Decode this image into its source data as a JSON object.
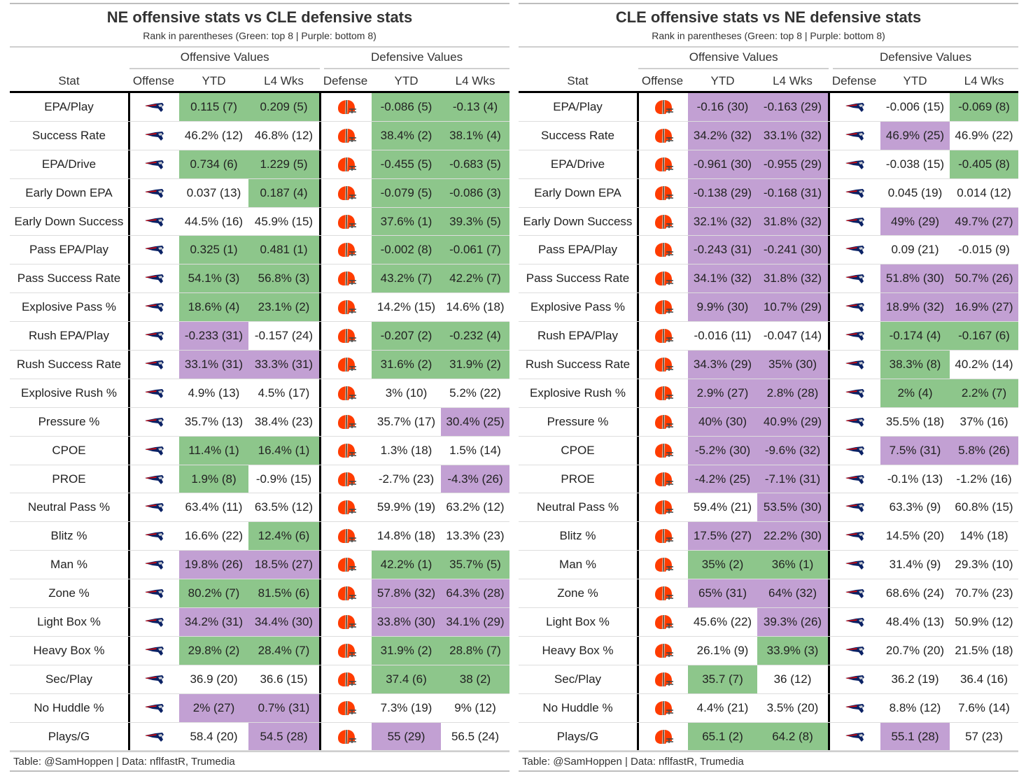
{
  "colors": {
    "green": "#8dc68b",
    "purple": "#c2a0d3"
  },
  "panels": [
    {
      "title": "NE offensive stats vs CLE defensive stats",
      "subtitle": "Rank in parentheses (Green: top 8 | Purple: bottom 8)",
      "spanners": [
        "Offensive Values",
        "Defensive Values"
      ],
      "columns": [
        "Stat",
        "Offense",
        "YTD",
        "L4 Wks",
        "Defense",
        "YTD",
        "L4 Wks"
      ],
      "offense_logo": "patriots-logo",
      "defense_logo": "browns-logo",
      "footer": "Table: @SamHoppen | Data: nflfastR, Trumedia",
      "rows": [
        {
          "stat": "EPA/Play",
          "cells": [
            [
              "0.115 (7)",
              "green"
            ],
            [
              "0.209 (5)",
              "green"
            ],
            [
              "-0.086 (5)",
              "green"
            ],
            [
              "-0.13 (4)",
              "green"
            ]
          ]
        },
        {
          "stat": "Success Rate",
          "cells": [
            [
              "46.2% (12)",
              ""
            ],
            [
              "46.8% (12)",
              ""
            ],
            [
              "38.4% (2)",
              "green"
            ],
            [
              "38.1% (4)",
              "green"
            ]
          ]
        },
        {
          "stat": "EPA/Drive",
          "cells": [
            [
              "0.734 (6)",
              "green"
            ],
            [
              "1.229 (5)",
              "green"
            ],
            [
              "-0.455 (5)",
              "green"
            ],
            [
              "-0.683 (5)",
              "green"
            ]
          ]
        },
        {
          "stat": "Early Down EPA",
          "cells": [
            [
              "0.037 (13)",
              ""
            ],
            [
              "0.187 (4)",
              "green"
            ],
            [
              "-0.079 (5)",
              "green"
            ],
            [
              "-0.086 (3)",
              "green"
            ]
          ]
        },
        {
          "stat": "Early Down Success",
          "cells": [
            [
              "44.5% (16)",
              ""
            ],
            [
              "45.9% (15)",
              ""
            ],
            [
              "37.6% (1)",
              "green"
            ],
            [
              "39.3% (5)",
              "green"
            ]
          ]
        },
        {
          "stat": "Pass EPA/Play",
          "cells": [
            [
              "0.325 (1)",
              "green"
            ],
            [
              "0.481 (1)",
              "green"
            ],
            [
              "-0.002 (8)",
              "green"
            ],
            [
              "-0.061 (7)",
              "green"
            ]
          ]
        },
        {
          "stat": "Pass Success Rate",
          "cells": [
            [
              "54.1% (3)",
              "green"
            ],
            [
              "56.8% (3)",
              "green"
            ],
            [
              "43.2% (7)",
              "green"
            ],
            [
              "42.2% (7)",
              "green"
            ]
          ]
        },
        {
          "stat": "Explosive Pass %",
          "cells": [
            [
              "18.6% (4)",
              "green"
            ],
            [
              "23.1% (2)",
              "green"
            ],
            [
              "14.2% (15)",
              ""
            ],
            [
              "14.6% (18)",
              ""
            ]
          ]
        },
        {
          "stat": "Rush EPA/Play",
          "cells": [
            [
              "-0.233 (31)",
              "purple"
            ],
            [
              "-0.157 (24)",
              ""
            ],
            [
              "-0.207 (2)",
              "green"
            ],
            [
              "-0.232 (4)",
              "green"
            ]
          ]
        },
        {
          "stat": "Rush Success Rate",
          "cells": [
            [
              "33.1% (31)",
              "purple"
            ],
            [
              "33.3% (31)",
              "purple"
            ],
            [
              "31.6% (2)",
              "green"
            ],
            [
              "31.9% (2)",
              "green"
            ]
          ]
        },
        {
          "stat": "Explosive Rush %",
          "cells": [
            [
              "4.9% (13)",
              ""
            ],
            [
              "4.5% (17)",
              ""
            ],
            [
              "3% (10)",
              ""
            ],
            [
              "5.2% (22)",
              ""
            ]
          ]
        },
        {
          "stat": "Pressure %",
          "cells": [
            [
              "35.7% (13)",
              ""
            ],
            [
              "38.4% (23)",
              ""
            ],
            [
              "35.7% (17)",
              ""
            ],
            [
              "30.4% (25)",
              "purple"
            ]
          ]
        },
        {
          "stat": "CPOE",
          "cells": [
            [
              "11.4% (1)",
              "green"
            ],
            [
              "16.4% (1)",
              "green"
            ],
            [
              "1.3% (18)",
              ""
            ],
            [
              "1.5% (14)",
              ""
            ]
          ]
        },
        {
          "stat": "PROE",
          "cells": [
            [
              "1.9% (8)",
              "green"
            ],
            [
              "-0.9% (15)",
              ""
            ],
            [
              "-2.7% (23)",
              ""
            ],
            [
              "-4.3% (26)",
              "purple"
            ]
          ]
        },
        {
          "stat": "Neutral Pass %",
          "cells": [
            [
              "63.4% (11)",
              ""
            ],
            [
              "63.5% (12)",
              ""
            ],
            [
              "59.9% (19)",
              ""
            ],
            [
              "63.2% (12)",
              ""
            ]
          ]
        },
        {
          "stat": "Blitz %",
          "cells": [
            [
              "16.6% (22)",
              ""
            ],
            [
              "12.4% (6)",
              "green"
            ],
            [
              "14.8% (18)",
              ""
            ],
            [
              "13.3% (23)",
              ""
            ]
          ]
        },
        {
          "stat": "Man %",
          "cells": [
            [
              "19.8% (26)",
              "purple"
            ],
            [
              "18.5% (27)",
              "purple"
            ],
            [
              "42.2% (1)",
              "green"
            ],
            [
              "35.7% (5)",
              "green"
            ]
          ]
        },
        {
          "stat": "Zone %",
          "cells": [
            [
              "80.2% (7)",
              "green"
            ],
            [
              "81.5% (6)",
              "green"
            ],
            [
              "57.8% (32)",
              "purple"
            ],
            [
              "64.3% (28)",
              "purple"
            ]
          ]
        },
        {
          "stat": "Light Box %",
          "cells": [
            [
              "34.2% (31)",
              "purple"
            ],
            [
              "34.4% (30)",
              "purple"
            ],
            [
              "33.8% (30)",
              "purple"
            ],
            [
              "34.1% (29)",
              "purple"
            ]
          ]
        },
        {
          "stat": "Heavy Box %",
          "cells": [
            [
              "29.8% (2)",
              "green"
            ],
            [
              "28.4% (7)",
              "green"
            ],
            [
              "31.9% (2)",
              "green"
            ],
            [
              "28.8% (7)",
              "green"
            ]
          ]
        },
        {
          "stat": "Sec/Play",
          "cells": [
            [
              "36.9 (20)",
              ""
            ],
            [
              "36.6 (15)",
              ""
            ],
            [
              "37.4 (6)",
              "green"
            ],
            [
              "38 (2)",
              "green"
            ]
          ]
        },
        {
          "stat": "No Huddle %",
          "cells": [
            [
              "2% (27)",
              "purple"
            ],
            [
              "0.7% (31)",
              "purple"
            ],
            [
              "7.3% (19)",
              ""
            ],
            [
              "9% (12)",
              ""
            ]
          ]
        },
        {
          "stat": "Plays/G",
          "cells": [
            [
              "58.4 (20)",
              ""
            ],
            [
              "54.5 (28)",
              "purple"
            ],
            [
              "55 (29)",
              "purple"
            ],
            [
              "56.5 (24)",
              ""
            ]
          ]
        }
      ]
    },
    {
      "title": "CLE offensive stats vs NE defensive stats",
      "subtitle": "Rank in parentheses (Green: top 8 | Purple: bottom 8)",
      "spanners": [
        "Offensive Values",
        "Defensive Values"
      ],
      "columns": [
        "Stat",
        "Offense",
        "YTD",
        "L4 Wks",
        "Defense",
        "YTD",
        "L4 Wks"
      ],
      "offense_logo": "browns-logo",
      "defense_logo": "patriots-logo",
      "footer": "Table: @SamHoppen | Data: nflfastR, Trumedia",
      "rows": [
        {
          "stat": "EPA/Play",
          "cells": [
            [
              "-0.16 (30)",
              "purple"
            ],
            [
              "-0.163 (29)",
              "purple"
            ],
            [
              "-0.006 (15)",
              ""
            ],
            [
              "-0.069 (8)",
              "green"
            ]
          ]
        },
        {
          "stat": "Success Rate",
          "cells": [
            [
              "34.2% (32)",
              "purple"
            ],
            [
              "33.1% (32)",
              "purple"
            ],
            [
              "46.9% (25)",
              "purple"
            ],
            [
              "46.9% (22)",
              ""
            ]
          ]
        },
        {
          "stat": "EPA/Drive",
          "cells": [
            [
              "-0.961 (30)",
              "purple"
            ],
            [
              "-0.955 (29)",
              "purple"
            ],
            [
              "-0.038 (15)",
              ""
            ],
            [
              "-0.405 (8)",
              "green"
            ]
          ]
        },
        {
          "stat": "Early Down EPA",
          "cells": [
            [
              "-0.138 (29)",
              "purple"
            ],
            [
              "-0.168 (31)",
              "purple"
            ],
            [
              "0.045 (19)",
              ""
            ],
            [
              "0.014 (12)",
              ""
            ]
          ]
        },
        {
          "stat": "Early Down Success",
          "cells": [
            [
              "32.1% (32)",
              "purple"
            ],
            [
              "31.8% (32)",
              "purple"
            ],
            [
              "49% (29)",
              "purple"
            ],
            [
              "49.7% (27)",
              "purple"
            ]
          ]
        },
        {
          "stat": "Pass EPA/Play",
          "cells": [
            [
              "-0.243 (31)",
              "purple"
            ],
            [
              "-0.241 (30)",
              "purple"
            ],
            [
              "0.09 (21)",
              ""
            ],
            [
              "-0.015 (9)",
              ""
            ]
          ]
        },
        {
          "stat": "Pass Success Rate",
          "cells": [
            [
              "34.1% (32)",
              "purple"
            ],
            [
              "31.8% (32)",
              "purple"
            ],
            [
              "51.8% (30)",
              "purple"
            ],
            [
              "50.7% (26)",
              "purple"
            ]
          ]
        },
        {
          "stat": "Explosive Pass %",
          "cells": [
            [
              "9.9% (30)",
              "purple"
            ],
            [
              "10.7% (29)",
              "purple"
            ],
            [
              "18.9% (32)",
              "purple"
            ],
            [
              "16.9% (27)",
              "purple"
            ]
          ]
        },
        {
          "stat": "Rush EPA/Play",
          "cells": [
            [
              "-0.016 (11)",
              ""
            ],
            [
              "-0.047 (14)",
              ""
            ],
            [
              "-0.174 (4)",
              "green"
            ],
            [
              "-0.167 (6)",
              "green"
            ]
          ]
        },
        {
          "stat": "Rush Success Rate",
          "cells": [
            [
              "34.3% (29)",
              "purple"
            ],
            [
              "35% (30)",
              "purple"
            ],
            [
              "38.3% (8)",
              "green"
            ],
            [
              "40.2% (14)",
              ""
            ]
          ]
        },
        {
          "stat": "Explosive Rush %",
          "cells": [
            [
              "2.9% (27)",
              "purple"
            ],
            [
              "2.8% (28)",
              "purple"
            ],
            [
              "2% (4)",
              "green"
            ],
            [
              "2.2% (7)",
              "green"
            ]
          ]
        },
        {
          "stat": "Pressure %",
          "cells": [
            [
              "40% (30)",
              "purple"
            ],
            [
              "40.9% (29)",
              "purple"
            ],
            [
              "35.5% (18)",
              ""
            ],
            [
              "37% (16)",
              ""
            ]
          ]
        },
        {
          "stat": "CPOE",
          "cells": [
            [
              "-5.2% (30)",
              "purple"
            ],
            [
              "-9.6% (32)",
              "purple"
            ],
            [
              "7.5% (31)",
              "purple"
            ],
            [
              "5.8% (26)",
              "purple"
            ]
          ]
        },
        {
          "stat": "PROE",
          "cells": [
            [
              "-4.2% (25)",
              "purple"
            ],
            [
              "-7.1% (31)",
              "purple"
            ],
            [
              "-0.1% (13)",
              ""
            ],
            [
              "-1.2% (16)",
              ""
            ]
          ]
        },
        {
          "stat": "Neutral Pass %",
          "cells": [
            [
              "59.4% (21)",
              ""
            ],
            [
              "53.5% (30)",
              "purple"
            ],
            [
              "63.3% (9)",
              ""
            ],
            [
              "60.8% (15)",
              ""
            ]
          ]
        },
        {
          "stat": "Blitz %",
          "cells": [
            [
              "17.5% (27)",
              "purple"
            ],
            [
              "22.2% (30)",
              "purple"
            ],
            [
              "14.5% (20)",
              ""
            ],
            [
              "14% (18)",
              ""
            ]
          ]
        },
        {
          "stat": "Man %",
          "cells": [
            [
              "35% (2)",
              "green"
            ],
            [
              "36% (1)",
              "green"
            ],
            [
              "31.4% (9)",
              ""
            ],
            [
              "29.3% (10)",
              ""
            ]
          ]
        },
        {
          "stat": "Zone %",
          "cells": [
            [
              "65% (31)",
              "purple"
            ],
            [
              "64% (32)",
              "purple"
            ],
            [
              "68.6% (24)",
              ""
            ],
            [
              "70.7% (23)",
              ""
            ]
          ]
        },
        {
          "stat": "Light Box %",
          "cells": [
            [
              "45.6% (22)",
              ""
            ],
            [
              "39.3% (26)",
              "purple"
            ],
            [
              "48.4% (13)",
              ""
            ],
            [
              "50.9% (12)",
              ""
            ]
          ]
        },
        {
          "stat": "Heavy Box %",
          "cells": [
            [
              "26.1% (9)",
              ""
            ],
            [
              "33.9% (3)",
              "green"
            ],
            [
              "20.7% (20)",
              ""
            ],
            [
              "21.5% (18)",
              ""
            ]
          ]
        },
        {
          "stat": "Sec/Play",
          "cells": [
            [
              "35.7 (7)",
              "green"
            ],
            [
              "36 (12)",
              ""
            ],
            [
              "36.2 (19)",
              ""
            ],
            [
              "36.4 (16)",
              ""
            ]
          ]
        },
        {
          "stat": "No Huddle %",
          "cells": [
            [
              "4.4% (21)",
              ""
            ],
            [
              "3.5% (20)",
              ""
            ],
            [
              "8.8% (12)",
              ""
            ],
            [
              "7.6% (14)",
              ""
            ]
          ]
        },
        {
          "stat": "Plays/G",
          "cells": [
            [
              "65.1 (2)",
              "green"
            ],
            [
              "64.2 (8)",
              "green"
            ],
            [
              "55.1 (28)",
              "purple"
            ],
            [
              "57 (23)",
              ""
            ]
          ]
        }
      ]
    }
  ]
}
